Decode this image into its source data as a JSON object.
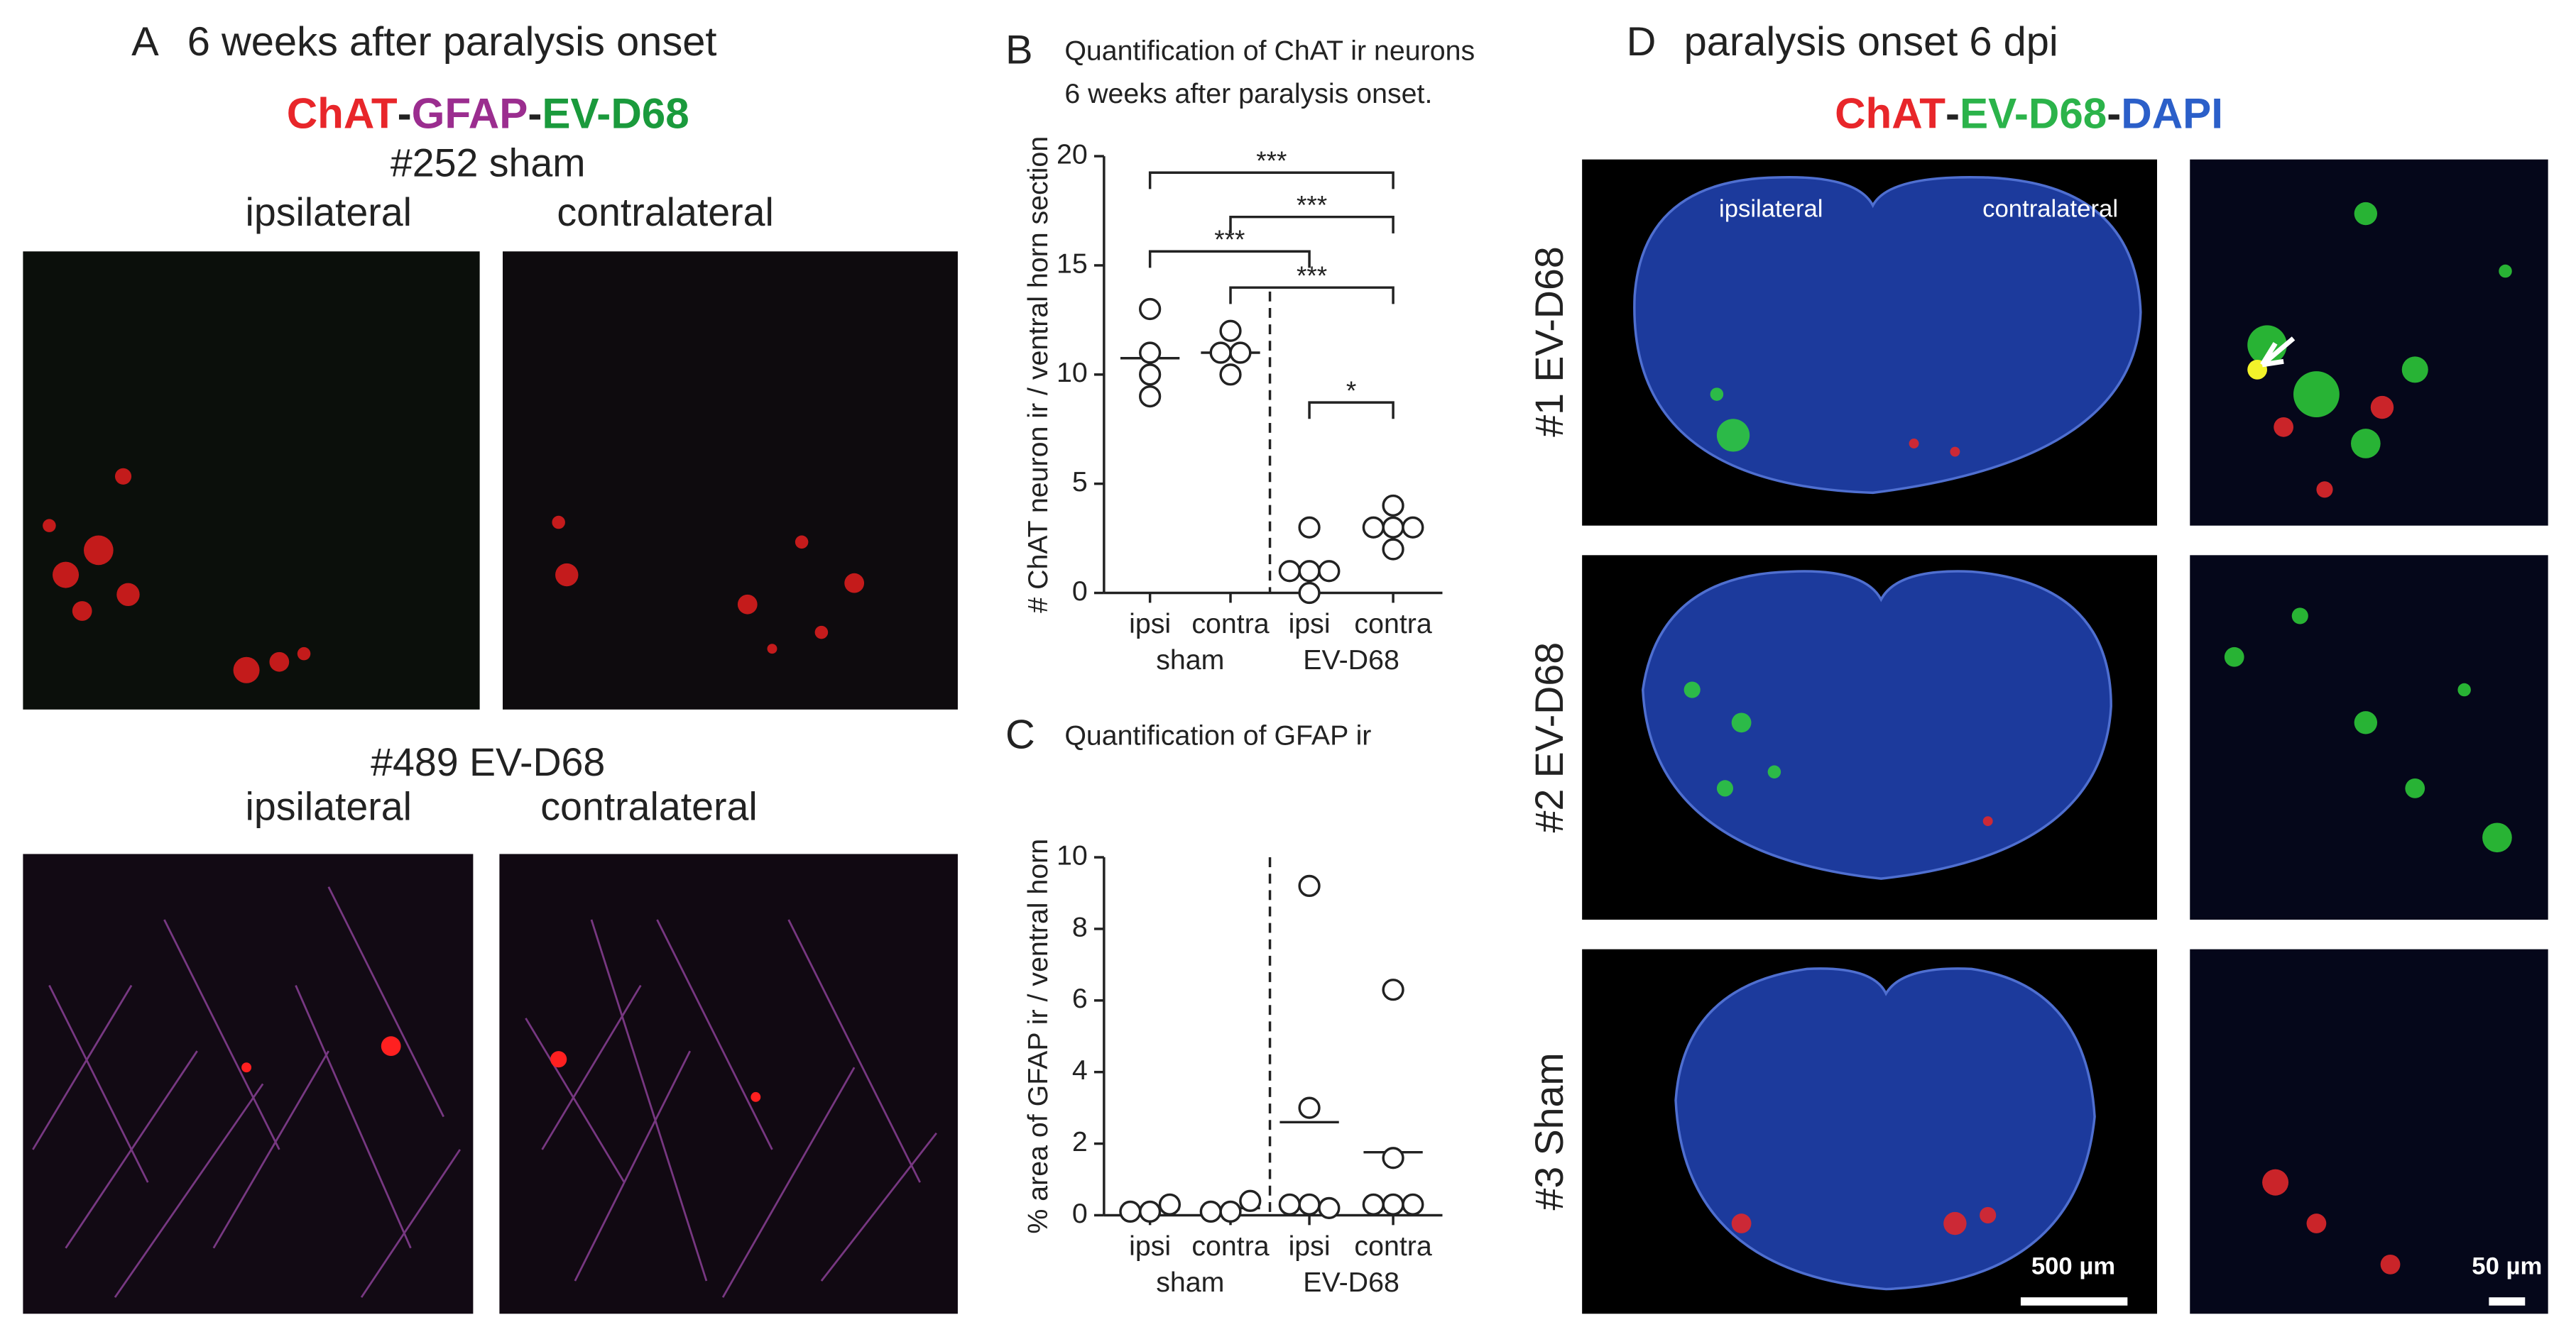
{
  "panel_a": {
    "letter": "A",
    "title": "6 weeks after paralysis onset",
    "stain": [
      "ChAT",
      "-",
      "GFAP",
      "-",
      "EV-D68"
    ],
    "rows": [
      {
        "label": "#252 sham",
        "left": "ipsilateral",
        "right": "contralateral"
      },
      {
        "label": "#489 EV-D68",
        "left": "ipsilateral",
        "right": "contralateral"
      }
    ]
  },
  "panel_d": {
    "letter": "D",
    "title": "paralysis onset 6 dpi",
    "stain": [
      "ChAT",
      "-",
      "EV-D68",
      "-",
      "DAPI"
    ],
    "sides": [
      "ipsilateral",
      "contralateral"
    ],
    "rows": [
      "#1 EV-D68",
      "#2 EV-D68",
      "#3 Sham"
    ],
    "scale_bars": [
      "500 µm",
      "50 µm"
    ]
  },
  "chart_data": [
    {
      "type": "scatter",
      "letter": "B",
      "title": [
        "Quantification of ChAT ir neurons",
        "6 weeks after paralysis onset."
      ],
      "ylabel": "# ChAT neuron ir / ventral horn section",
      "categories": [
        "ipsi",
        "contra",
        "ipsi",
        "contra"
      ],
      "groups": [
        "sham",
        "EV-D68"
      ],
      "values": [
        [
          13,
          11,
          10,
          9
        ],
        [
          11,
          12,
          11,
          10
        ],
        [
          3,
          1,
          1,
          1,
          0
        ],
        [
          4,
          3,
          3,
          3,
          2
        ]
      ],
      "means": [
        10.75,
        11,
        1.2,
        3
      ],
      "ylim": [
        0,
        20
      ],
      "yticks": [
        0,
        5,
        10,
        15,
        20
      ],
      "comparisons": [
        {
          "pair": [
            0,
            3
          ],
          "label": "***"
        },
        {
          "pair": [
            1,
            3
          ],
          "label": "***"
        },
        {
          "pair": [
            0,
            2
          ],
          "label": "***"
        },
        {
          "pair": [
            1,
            3
          ],
          "label": "***"
        },
        {
          "pair": [
            2,
            3
          ],
          "label": "*"
        }
      ]
    },
    {
      "type": "scatter",
      "letter": "C",
      "title": [
        "Quantification of GFAP ir"
      ],
      "ylabel": "% area of  GFAP ir / ventral horn",
      "categories": [
        "ipsi",
        "contra",
        "ipsi",
        "contra"
      ],
      "groups": [
        "sham",
        "EV-D68"
      ],
      "values": [
        [
          0.1,
          0.1,
          0.3
        ],
        [
          0.1,
          0.1,
          0.4
        ],
        [
          9.2,
          3,
          0.3,
          0.3,
          0.2
        ],
        [
          6.3,
          1.6,
          0.3,
          0.3,
          0.3
        ]
      ],
      "means": [
        0.17,
        0.2,
        2.6,
        1.76
      ],
      "ylim": [
        0,
        10
      ],
      "yticks": [
        0,
        2,
        4,
        6,
        8,
        10
      ],
      "comparisons": []
    }
  ]
}
